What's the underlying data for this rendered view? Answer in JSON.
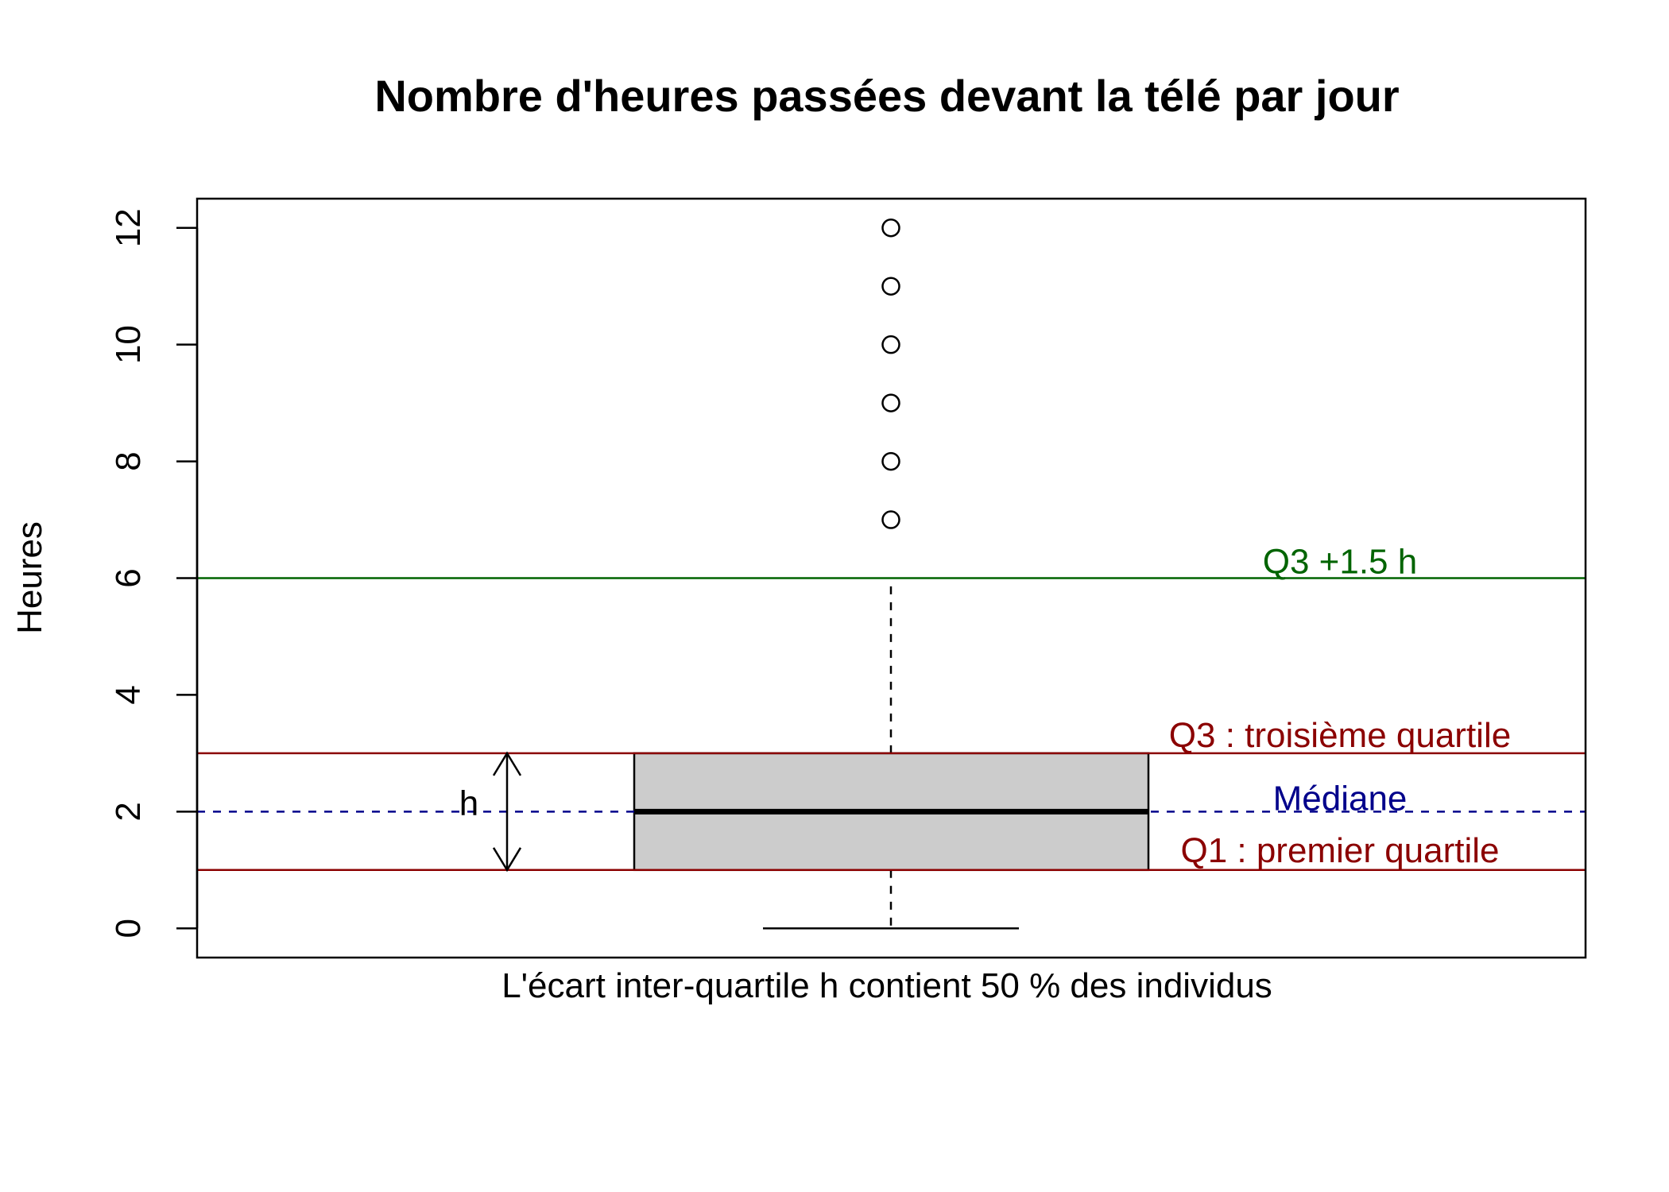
{
  "chart_data": {
    "type": "boxplot",
    "title": "Nombre d'heures passées devant la télé par jour",
    "xlabel": "L'écart inter-quartile h contient 50 % des individus",
    "ylabel": "Heures",
    "ylim": [
      -0.5,
      12.5
    ],
    "yticks": [
      "0",
      "2",
      "4",
      "6",
      "8",
      "10",
      "12"
    ],
    "ytick_values": [
      0,
      2,
      4,
      6,
      8,
      10,
      12
    ],
    "box": {
      "lower_whisker": 0,
      "q1": 1,
      "median": 2,
      "q3": 3,
      "upper_whisker": 6,
      "outliers": [
        7,
        8,
        9,
        10,
        11,
        12
      ]
    },
    "reference_lines": [
      {
        "value": 6,
        "label": "Q3 +1.5 h",
        "color": "#006400",
        "style": "solid"
      },
      {
        "value": 3,
        "label": "Q3 : troisième quartile",
        "color": "#8B0000",
        "style": "solid"
      },
      {
        "value": 2,
        "label": "Médiane",
        "color": "#00008B",
        "style": "dashed"
      },
      {
        "value": 1,
        "label": "Q1 : premier quartile",
        "color": "#8B0000",
        "style": "solid"
      }
    ],
    "iqr_arrow": {
      "from": 1,
      "to": 3,
      "label": "h"
    },
    "box_fill": "#cccccc"
  }
}
